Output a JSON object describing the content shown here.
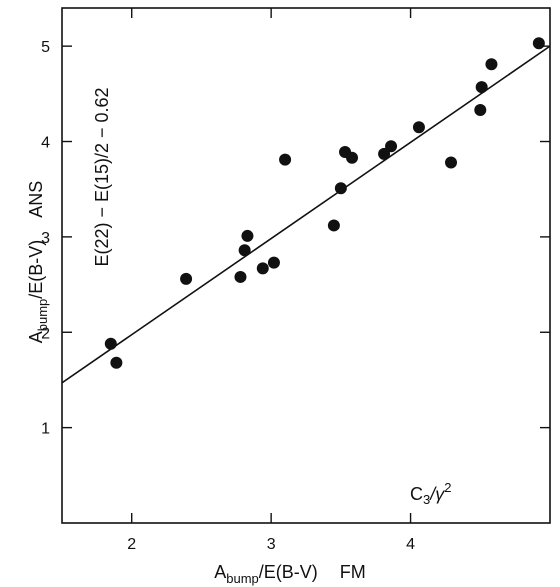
{
  "chart_data": {
    "type": "scatter",
    "title": "",
    "xlabel_main": "A",
    "xlabel_sub": "bump",
    "xlabel_rest": "/E(B-V)",
    "xlabel_suffix": "FM",
    "ylabel_main": "A",
    "ylabel_sub": "bump",
    "ylabel_rest": "/E(B-V)",
    "ylabel_suffix": "ANS",
    "xlim": [
      1.5,
      5.0
    ],
    "ylim": [
      0.0,
      5.4
    ],
    "x_ticks": [
      2,
      3,
      4
    ],
    "x_tick_labels": [
      "2",
      "3",
      "4"
    ],
    "y_ticks": [
      1,
      2,
      3,
      4,
      5
    ],
    "y_tick_labels": [
      "1",
      "2",
      "3",
      "4",
      "5"
    ],
    "annotation_left": "E(22) − E(15)/2 − 0.62",
    "annotation_right_main": "C",
    "annotation_right_sub": "3",
    "annotation_right_rest": "/γ",
    "annotation_right_sup": "2",
    "fit_line": {
      "x": [
        1.5,
        5.0
      ],
      "y": [
        1.47,
        5.0
      ]
    },
    "points": [
      {
        "x": 1.85,
        "y": 1.88
      },
      {
        "x": 1.89,
        "y": 1.68
      },
      {
        "x": 2.39,
        "y": 2.56
      },
      {
        "x": 2.78,
        "y": 2.58
      },
      {
        "x": 2.81,
        "y": 2.86
      },
      {
        "x": 2.83,
        "y": 3.01
      },
      {
        "x": 2.94,
        "y": 2.67
      },
      {
        "x": 3.02,
        "y": 2.73
      },
      {
        "x": 3.1,
        "y": 3.81
      },
      {
        "x": 3.45,
        "y": 3.12
      },
      {
        "x": 3.5,
        "y": 3.51
      },
      {
        "x": 3.53,
        "y": 3.89
      },
      {
        "x": 3.58,
        "y": 3.83
      },
      {
        "x": 3.81,
        "y": 3.87
      },
      {
        "x": 3.86,
        "y": 3.95
      },
      {
        "x": 4.06,
        "y": 4.15
      },
      {
        "x": 4.29,
        "y": 3.78
      },
      {
        "x": 4.5,
        "y": 4.33
      },
      {
        "x": 4.51,
        "y": 4.57
      },
      {
        "x": 4.58,
        "y": 4.81
      },
      {
        "x": 4.92,
        "y": 5.03
      }
    ]
  }
}
